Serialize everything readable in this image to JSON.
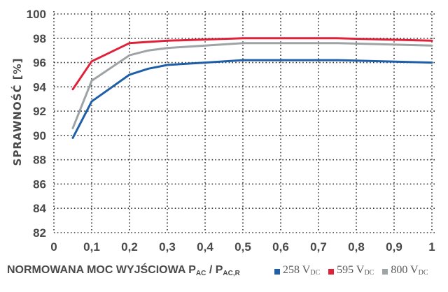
{
  "chart_data": {
    "type": "line",
    "title": "",
    "xlabel": "NORMOWANA MOC WYJŚCIOWA P_AC / P_AC,R",
    "ylabel": "SPRAWNOŚĆ [%]",
    "xlim": [
      0,
      1
    ],
    "ylim": [
      82,
      100
    ],
    "x_ticks": [
      "0",
      "0,1",
      "0,2",
      "0,3",
      "0,4",
      "0,5",
      "0,6",
      "0,7",
      "0,8",
      "0,9",
      "1"
    ],
    "y_ticks": [
      "82",
      "84",
      "86",
      "88",
      "90",
      "92",
      "94",
      "96",
      "98",
      "100"
    ],
    "grid": true,
    "legend_position": "bottom-right",
    "series": [
      {
        "name": "258 V_DC",
        "color": "#1f5fa8",
        "x": [
          0.05,
          0.1,
          0.2,
          0.25,
          0.3,
          0.4,
          0.5,
          0.75,
          1.0
        ],
        "values": [
          89.8,
          92.8,
          95.0,
          95.5,
          95.8,
          96.0,
          96.2,
          96.2,
          96.0
        ]
      },
      {
        "name": "595 V_DC",
        "color": "#e0213a",
        "x": [
          0.05,
          0.1,
          0.2,
          0.3,
          0.5,
          0.75,
          1.0
        ],
        "values": [
          93.8,
          96.1,
          97.6,
          97.8,
          98.0,
          98.0,
          97.8
        ]
      },
      {
        "name": "800 V_DC",
        "color": "#9ea3a5",
        "x": [
          0.05,
          0.1,
          0.2,
          0.25,
          0.3,
          0.4,
          0.5,
          0.75,
          1.0
        ],
        "values": [
          90.6,
          94.5,
          96.6,
          97.0,
          97.2,
          97.4,
          97.6,
          97.6,
          97.4
        ]
      }
    ]
  },
  "labels": {
    "ylabel": "SPRAWNOŚĆ [%]",
    "xlabel_main": "NORMOWANA MOC WYJŚCIOWA P",
    "xlabel_sub1": "AC",
    "xlabel_mid": " / P",
    "xlabel_sub2": "AC,R"
  },
  "legend": [
    {
      "value": "258 V",
      "sub": "DC",
      "color": "#1f5fa8"
    },
    {
      "value": "595 V",
      "sub": "DC",
      "color": "#e0213a"
    },
    {
      "value": "800 V",
      "sub": "DC",
      "color": "#9ea3a5"
    }
  ]
}
